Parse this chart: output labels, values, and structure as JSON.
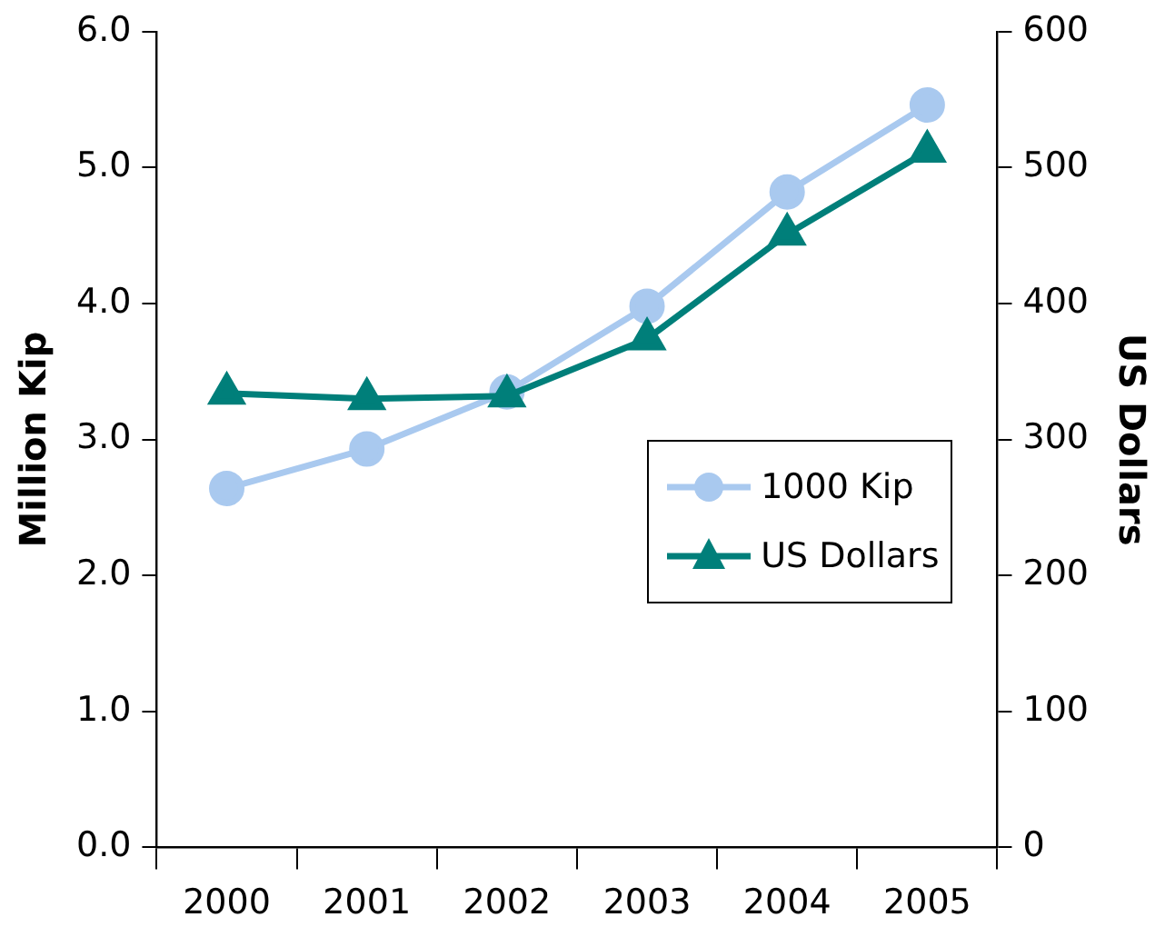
{
  "chart_data": {
    "type": "line",
    "categories": [
      "2000",
      "2001",
      "2002",
      "2003",
      "2004",
      "2005"
    ],
    "series": [
      {
        "name": "1000 Kip",
        "color": "#a9c9ef",
        "marker": "circle",
        "values": [
          2.64,
          2.93,
          3.35,
          3.98,
          4.82,
          5.46
        ]
      },
      {
        "name": "US Dollars",
        "color": "#007f7a",
        "marker": "triangle",
        "axis": "y2",
        "values": [
          334,
          330,
          332,
          374,
          451,
          512
        ]
      }
    ],
    "ylabel": "Million Kip",
    "y2label": "US Dollars",
    "ylim": [
      0,
      6
    ],
    "yticks": [
      {
        "value": 0,
        "label": "0.0"
      },
      {
        "value": 1,
        "label": "1.0"
      },
      {
        "value": 2,
        "label": "2.0"
      },
      {
        "value": 3,
        "label": "3.0"
      },
      {
        "value": 4,
        "label": "4.0"
      },
      {
        "value": 5,
        "label": "5.0"
      },
      {
        "value": 6,
        "label": "6.0"
      }
    ],
    "y2lim": [
      0,
      600
    ],
    "y2ticks": [
      0,
      100,
      200,
      300,
      400,
      500,
      600
    ],
    "grid": false,
    "legend": "right"
  }
}
